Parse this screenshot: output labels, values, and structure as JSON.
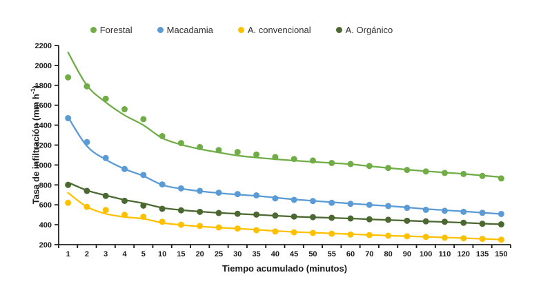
{
  "chart_data": {
    "type": "scatter",
    "title": "",
    "xlabel": "Tiempo acumulado (minutos)",
    "ylabel": "Tasa de infiltración (mm h⁻¹)",
    "ylabel_main": "Tasa de infiltración  (mm h",
    "ylabel_sup": "-1",
    "ylabel_close": ")",
    "ylim": [
      200,
      2200
    ],
    "yticks": [
      200,
      400,
      600,
      800,
      1000,
      1200,
      1400,
      1600,
      1800,
      2000,
      2200
    ],
    "grid": false,
    "legend_position": "top",
    "categories": [
      "1",
      "2",
      "3",
      "4",
      "5",
      "10",
      "15",
      "20",
      "25",
      "30",
      "35",
      "40",
      "45",
      "50",
      "55",
      "60",
      "70",
      "80",
      "90",
      "100",
      "110",
      "120",
      "135",
      "150"
    ],
    "series": [
      {
        "name": "Forestal",
        "color": "#70AD47",
        "values": [
          1880,
          1790,
          1665,
          1560,
          1460,
          1290,
          1220,
          1180,
          1150,
          1130,
          1105,
          1080,
          1060,
          1045,
          1020,
          1010,
          990,
          970,
          950,
          935,
          920,
          910,
          890,
          865
        ],
        "trend": [
          2130,
          1800,
          1630,
          1500,
          1400,
          1270,
          1205,
          1160,
          1125,
          1095,
          1075,
          1058,
          1044,
          1032,
          1020,
          1008,
          988,
          970,
          953,
          938,
          924,
          911,
          894,
          878
        ]
      },
      {
        "name": "Macadamia",
        "color": "#5B9BD5",
        "values": [
          1470,
          1230,
          1070,
          960,
          900,
          805,
          765,
          740,
          722,
          708,
          695,
          665,
          650,
          638,
          620,
          610,
          600,
          588,
          570,
          550,
          540,
          530,
          520,
          508
        ],
        "trend": [
          1480,
          1190,
          1055,
          960,
          890,
          800,
          762,
          737,
          718,
          703,
          690,
          672,
          655,
          640,
          626,
          613,
          600,
          588,
          574,
          558,
          546,
          534,
          521,
          508
        ]
      },
      {
        "name": "A. convencional",
        "color": "#FFC000",
        "values": [
          620,
          580,
          548,
          500,
          480,
          430,
          400,
          388,
          373,
          362,
          345,
          332,
          324,
          318,
          310,
          302,
          296,
          290,
          284,
          278,
          270,
          264,
          258,
          250
        ],
        "trend": [
          720,
          580,
          510,
          478,
          460,
          420,
          398,
          383,
          371,
          361,
          350,
          338,
          328,
          321,
          313,
          306,
          298,
          291,
          285,
          279,
          272,
          266,
          259,
          251
        ]
      },
      {
        "name": "A. Orgánico",
        "color": "#4A682F",
        "values": [
          800,
          740,
          690,
          640,
          592,
          560,
          545,
          530,
          518,
          510,
          502,
          492,
          482,
          476,
          470,
          463,
          455,
          450,
          440,
          434,
          430,
          420,
          410,
          404
        ],
        "trend": [
          825,
          745,
          695,
          650,
          615,
          570,
          548,
          532,
          520,
          510,
          501,
          491,
          482,
          475,
          469,
          463,
          455,
          448,
          441,
          434,
          428,
          421,
          412,
          404
        ]
      }
    ]
  },
  "style": {
    "axis_color": "#1f1f1f",
    "tick_text_color": "#1a1a1a",
    "legend_text_color": "#303030"
  }
}
